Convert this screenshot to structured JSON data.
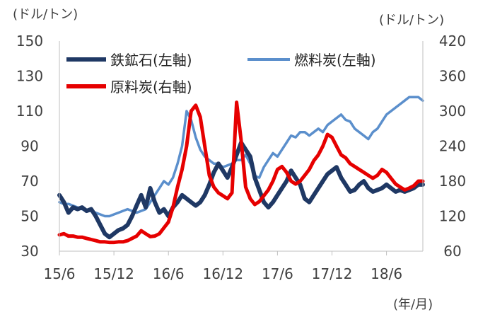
{
  "chart_data": {
    "type": "line",
    "title": "",
    "left_axis_label": "(ドル/トン)",
    "right_axis_label": "(ドル/トン)",
    "xlabel": "(年/月)",
    "x_ticks": [
      "15/6",
      "15/12",
      "16/6",
      "16/12",
      "17/6",
      "17/12",
      "18/6"
    ],
    "x_range": [
      0,
      40
    ],
    "y_left": {
      "ticks": [
        "150",
        "130",
        "110",
        "90",
        "70",
        "50",
        "30"
      ],
      "ylim": [
        30,
        150
      ]
    },
    "y_right": {
      "ticks": [
        "420",
        "360",
        "300",
        "240",
        "180",
        "120",
        "60"
      ],
      "ylim": [
        60,
        420
      ]
    },
    "grid": false,
    "legend": "top-left",
    "series": [
      {
        "name": "鉄鉱石(左軸)",
        "axis": "left",
        "color": "#1f3864",
        "x": [
          0,
          0.5,
          1,
          1.5,
          2,
          2.5,
          3,
          3.5,
          4,
          4.5,
          5,
          5.5,
          6,
          6.5,
          7,
          7.5,
          8,
          8.5,
          9,
          9.5,
          10,
          10.5,
          11,
          11.5,
          12,
          12.5,
          13,
          13.5,
          14,
          14.5,
          15,
          15.5,
          16,
          16.5,
          17,
          17.5,
          18,
          18.5,
          19,
          19.5,
          20,
          20.5,
          21,
          21.5,
          22,
          22.5,
          23,
          23.5,
          24,
          24.5,
          25,
          25.5,
          26,
          26.5,
          27,
          27.5,
          28,
          28.5,
          29,
          29.5,
          30,
          30.5,
          31,
          31.5,
          32,
          32.5,
          33,
          33.5,
          34,
          34.5,
          35,
          35.5,
          36,
          36.5,
          37,
          37.5,
          38,
          38.5,
          39,
          39.5,
          40
        ],
        "values": [
          62,
          58,
          52,
          55,
          54,
          55,
          53,
          54,
          50,
          45,
          40,
          38,
          40,
          42,
          43,
          45,
          50,
          56,
          62,
          55,
          66,
          58,
          52,
          54,
          50,
          55,
          58,
          62,
          60,
          58,
          56,
          58,
          62,
          68,
          75,
          80,
          76,
          72,
          78,
          85,
          92,
          88,
          84,
          72,
          65,
          58,
          55,
          58,
          62,
          66,
          70,
          76,
          72,
          68,
          60,
          58,
          62,
          66,
          70,
          74,
          76,
          78,
          72,
          68,
          64,
          65,
          68,
          70,
          66,
          64,
          65,
          66,
          68,
          66,
          64,
          65,
          64,
          65,
          66,
          68,
          68
        ]
      },
      {
        "name": "燃料炭(左軸)",
        "axis": "left",
        "color": "#5b8fcc",
        "x": [
          0,
          0.5,
          1,
          1.5,
          2,
          2.5,
          3,
          3.5,
          4,
          4.5,
          5,
          5.5,
          6,
          6.5,
          7,
          7.5,
          8,
          8.5,
          9,
          9.5,
          10,
          10.5,
          11,
          11.5,
          12,
          12.5,
          13,
          13.5,
          14,
          14.5,
          15,
          15.5,
          16,
          16.5,
          17,
          17.5,
          18,
          18.5,
          19,
          19.5,
          20,
          20.5,
          21,
          21.5,
          22,
          22.5,
          23,
          23.5,
          24,
          24.5,
          25,
          25.5,
          26,
          26.5,
          27,
          27.5,
          28,
          28.5,
          29,
          29.5,
          30,
          30.5,
          31,
          31.5,
          32,
          32.5,
          33,
          33.5,
          34,
          34.5,
          35,
          35.5,
          36,
          36.5,
          37,
          37.5,
          38,
          38.5,
          39,
          39.5,
          40
        ],
        "values": [
          58,
          57,
          57,
          56,
          55,
          54,
          53,
          53,
          52,
          51,
          50,
          50,
          51,
          52,
          53,
          54,
          53,
          52,
          53,
          54,
          58,
          62,
          66,
          70,
          68,
          72,
          80,
          90,
          110,
          105,
          95,
          88,
          84,
          82,
          80,
          80,
          78,
          79,
          80,
          82,
          82,
          85,
          80,
          73,
          72,
          78,
          82,
          86,
          84,
          88,
          92,
          96,
          95,
          98,
          98,
          96,
          98,
          100,
          98,
          102,
          104,
          106,
          108,
          105,
          104,
          100,
          98,
          96,
          94,
          98,
          100,
          104,
          108,
          110,
          112,
          114,
          116,
          118,
          118,
          118,
          116
        ]
      },
      {
        "name": "原料炭(右軸)",
        "axis": "right",
        "color": "#e60000",
        "x": [
          0,
          0.5,
          1,
          1.5,
          2,
          2.5,
          3,
          3.5,
          4,
          4.5,
          5,
          5.5,
          6,
          6.5,
          7,
          7.5,
          8,
          8.5,
          9,
          9.5,
          10,
          10.5,
          11,
          11.5,
          12,
          12.5,
          13,
          13.5,
          14,
          14.5,
          15,
          15.5,
          16,
          16.5,
          17,
          17.5,
          18,
          18.5,
          19,
          19.5,
          20,
          20.5,
          21,
          21.5,
          22,
          22.5,
          23,
          23.5,
          24,
          24.5,
          25,
          25.5,
          26,
          26.5,
          27,
          27.5,
          28,
          28.5,
          29,
          29.5,
          30,
          30.5,
          31,
          31.5,
          32,
          32.5,
          33,
          33.5,
          34,
          34.5,
          35,
          35.5,
          36,
          36.5,
          37,
          37.5,
          38,
          38.5,
          39,
          39.5,
          40
        ],
        "values": [
          88,
          90,
          86,
          86,
          84,
          84,
          82,
          80,
          78,
          76,
          76,
          75,
          75,
          76,
          76,
          78,
          82,
          86,
          95,
          90,
          85,
          86,
          90,
          100,
          110,
          135,
          170,
          200,
          240,
          300,
          310,
          290,
          240,
          190,
          170,
          160,
          155,
          150,
          160,
          315,
          250,
          170,
          150,
          140,
          145,
          155,
          165,
          180,
          200,
          205,
          195,
          180,
          175,
          180,
          190,
          200,
          215,
          225,
          240,
          260,
          255,
          240,
          225,
          220,
          210,
          205,
          200,
          195,
          190,
          185,
          190,
          200,
          195,
          185,
          175,
          170,
          165,
          168,
          172,
          180,
          180
        ]
      }
    ]
  }
}
